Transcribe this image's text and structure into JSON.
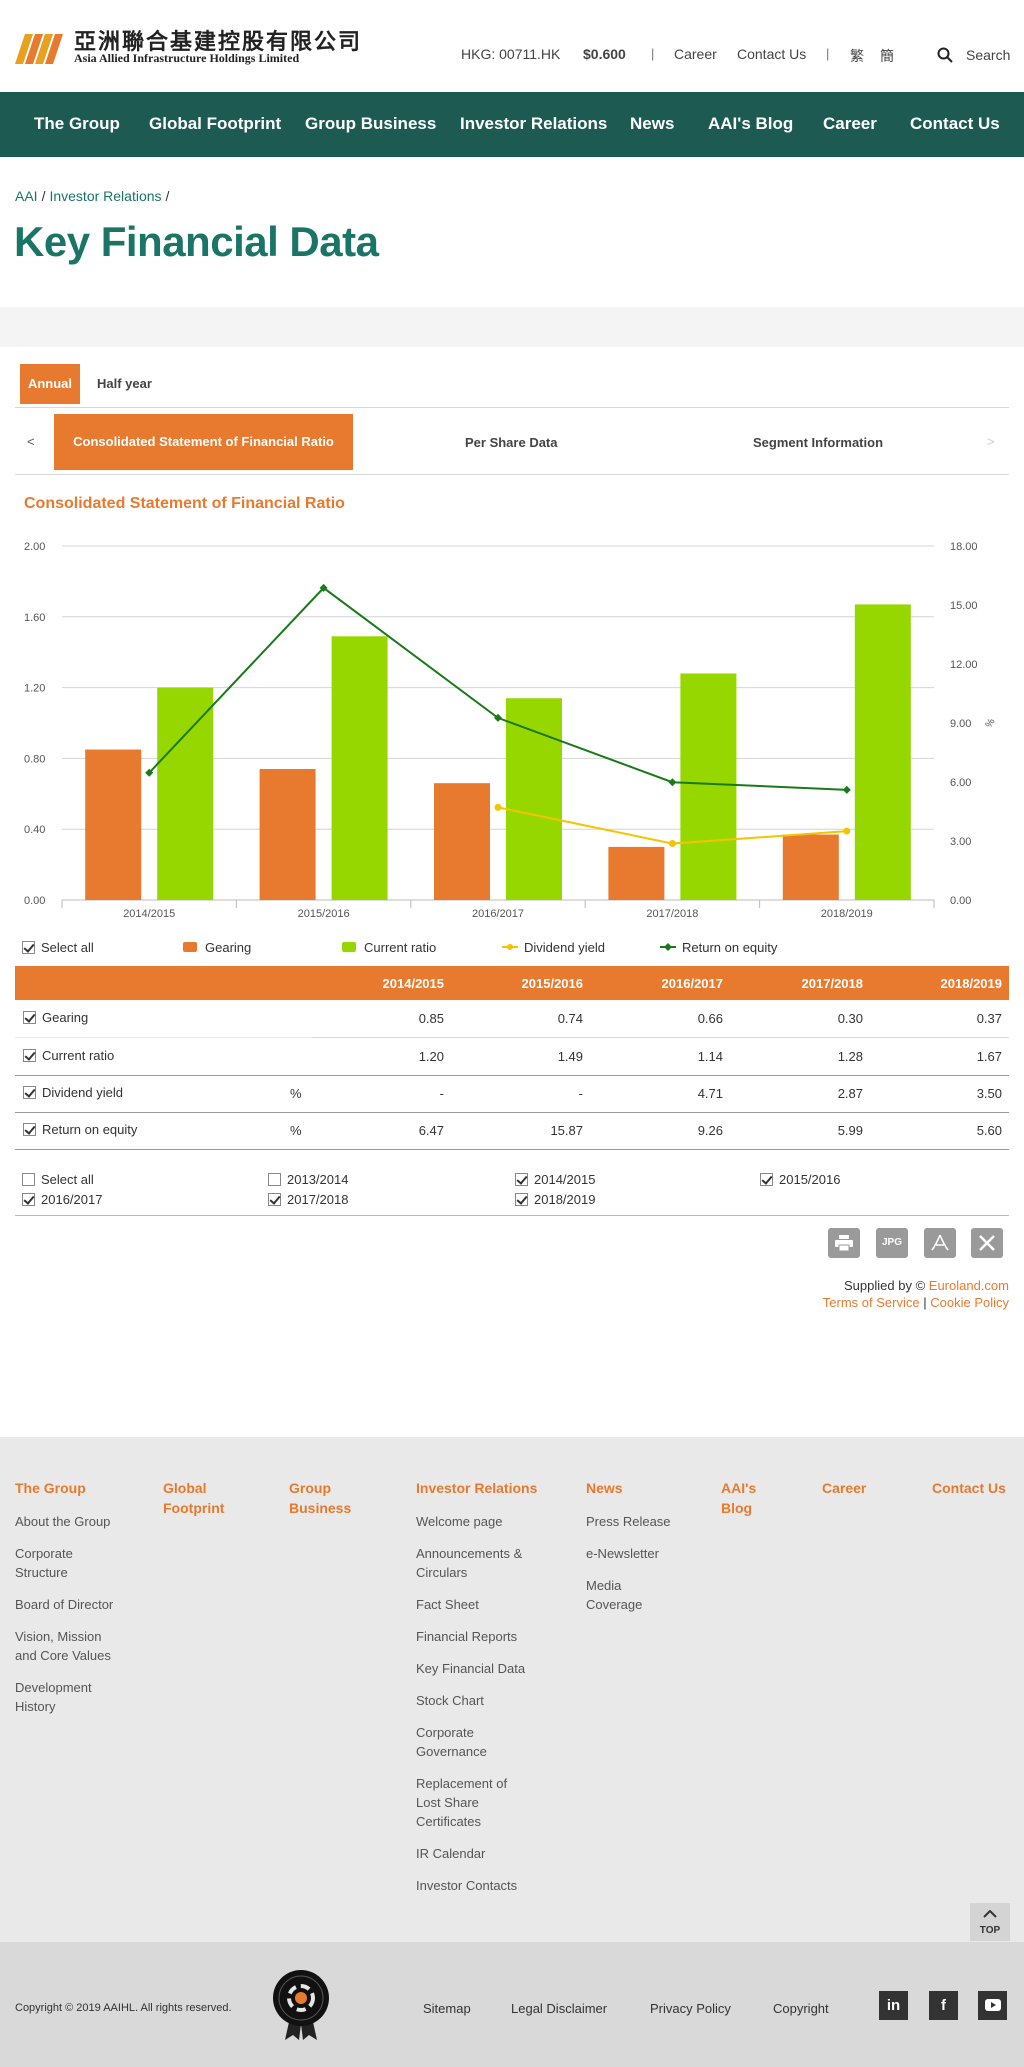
{
  "header": {
    "logo_cn": "亞洲聯合基建控股有限公司",
    "logo_en": "Asia Allied Infrastructure Holdings Limited",
    "ticker": "HKG: 00711.HK",
    "price": "$0.600",
    "links": [
      "Career",
      "Contact Us"
    ],
    "lang_tc": "繁",
    "lang_sc": "簡",
    "search_label": "Search"
  },
  "nav": [
    "The Group",
    "Global Footprint",
    "Group Business",
    "Investor Relations",
    "News",
    "AAI's Blog",
    "Career",
    "Contact Us"
  ],
  "breadcrumb": [
    "AAI",
    "Investor Relations"
  ],
  "page_title": "Key Financial Data",
  "tabs": {
    "annual": "Annual",
    "half": "Half year"
  },
  "subnav": {
    "prev": "<",
    "next": ">",
    "items": [
      "Consolidated Statement of Financial Ratio",
      "Per Share Data",
      "Segment Information"
    ]
  },
  "section_title": "Consolidated Statement of Financial Ratio",
  "chart_data": {
    "type": "bar",
    "categories": [
      "2014/2015",
      "2015/2016",
      "2016/2017",
      "2017/2018",
      "2018/2019"
    ],
    "y_left": {
      "ticks": [
        "0.00",
        "0.40",
        "0.80",
        "1.20",
        "1.60",
        "2.00"
      ],
      "range": [
        0,
        2
      ]
    },
    "y_right": {
      "ticks": [
        "0.00",
        "3.00",
        "6.00",
        "9.00",
        "12.00",
        "15.00",
        "18.00"
      ],
      "range": [
        0,
        18
      ],
      "label": "%"
    },
    "series": [
      {
        "name": "Gearing",
        "kind": "bar",
        "axis": "left",
        "color": "#e87a2f",
        "values": [
          0.85,
          0.74,
          0.66,
          0.3,
          0.37
        ]
      },
      {
        "name": "Current ratio",
        "kind": "bar",
        "axis": "left",
        "color": "#97d700",
        "values": [
          1.2,
          1.49,
          1.14,
          1.28,
          1.67
        ]
      },
      {
        "name": "Dividend yield",
        "kind": "line",
        "axis": "right",
        "color": "#f2c500",
        "values": [
          null,
          null,
          4.71,
          2.87,
          3.5
        ]
      },
      {
        "name": "Return on equity",
        "kind": "line",
        "axis": "right",
        "color": "#1a7a1a",
        "values": [
          6.47,
          15.87,
          9.26,
          5.99,
          5.6
        ]
      }
    ],
    "grid": true,
    "legend_position": "bottom"
  },
  "legend": {
    "select_all": "Select all"
  },
  "table": {
    "headers": [
      "2014/2015",
      "2015/2016",
      "2016/2017",
      "2017/2018",
      "2018/2019"
    ],
    "rows": [
      {
        "label": "Gearing",
        "unit": "",
        "values": [
          "0.85",
          "0.74",
          "0.66",
          "0.30",
          "0.37"
        ]
      },
      {
        "label": "Current ratio",
        "unit": "",
        "values": [
          "1.20",
          "1.49",
          "1.14",
          "1.28",
          "1.67"
        ]
      },
      {
        "label": "Dividend yield",
        "unit": "%",
        "values": [
          "-",
          "-",
          "4.71",
          "2.87",
          "3.50"
        ]
      },
      {
        "label": "Return on equity",
        "unit": "%",
        "values": [
          "6.47",
          "15.87",
          "9.26",
          "5.99",
          "5.60"
        ]
      }
    ]
  },
  "year_selector": {
    "select_all": "Select all",
    "years": [
      {
        "label": "2013/2014",
        "checked": false
      },
      {
        "label": "2014/2015",
        "checked": true
      },
      {
        "label": "2015/2016",
        "checked": true
      },
      {
        "label": "2016/2017",
        "checked": true
      },
      {
        "label": "2017/2018",
        "checked": true
      },
      {
        "label": "2018/2019",
        "checked": true
      }
    ]
  },
  "tools": {
    "jpg": "JPG"
  },
  "supplied": {
    "prefix": "Supplied by ©",
    "provider": "Euroland.com",
    "terms": "Terms of Service",
    "sep": "|",
    "cookie": "Cookie Policy"
  },
  "footer": {
    "columns": [
      {
        "heading": "The Group",
        "items": [
          "About the Group",
          "Corporate Structure",
          "Board of Director",
          "Vision, Mission and Core Values",
          "Development History"
        ]
      },
      {
        "heading": "Global Footprint",
        "items": []
      },
      {
        "heading": "Group Business",
        "items": []
      },
      {
        "heading": "Investor Relations",
        "items": [
          "Welcome page",
          "Announcements & Circulars",
          "Fact Sheet",
          "Financial Reports",
          "Key Financial Data",
          "Stock Chart",
          "Corporate Governance",
          "Replacement of Lost Share Certificates",
          "IR Calendar",
          "Investor Contacts"
        ]
      },
      {
        "heading": "News",
        "items": [
          "Press Release",
          "e-Newsletter",
          "Media Coverage"
        ]
      },
      {
        "heading": "AAI's Blog",
        "items": []
      },
      {
        "heading": "Career",
        "items": []
      },
      {
        "heading": "Contact Us",
        "items": []
      }
    ],
    "top_label": "TOP",
    "copyright": "Copyright © 2019 AAIHL. All rights reserved.",
    "bottom_links": [
      "Sitemap",
      "Legal Disclaimer",
      "Privacy Policy",
      "Copyright"
    ]
  },
  "colors": {
    "brand_green": "#1d5b52",
    "accent_orange": "#e87a2f",
    "title_teal": "#1a7567"
  }
}
